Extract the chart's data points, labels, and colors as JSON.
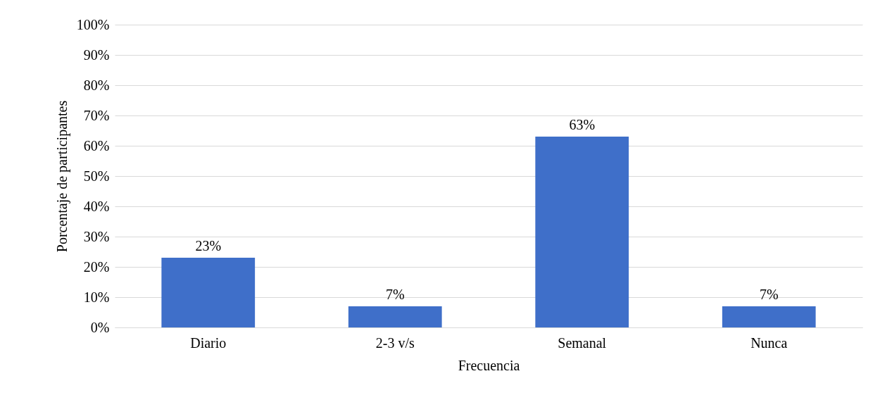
{
  "chart_data": {
    "type": "bar",
    "xlabel": "Frecuencia",
    "ylabel": "Porcentaje de participantes",
    "categories": [
      "Diario",
      "2-3 v/s",
      "Semanal",
      "Nunca"
    ],
    "values": [
      23,
      7,
      63,
      7
    ],
    "value_labels": [
      "23%",
      "7%",
      "63%",
      "7%"
    ],
    "color": "#3f6fc9",
    "ylim": [
      0,
      100
    ],
    "yticks": [
      {
        "value": 0,
        "label": "0%"
      },
      {
        "value": 10,
        "label": "10%"
      },
      {
        "value": 20,
        "label": "20%"
      },
      {
        "value": 30,
        "label": "30%"
      },
      {
        "value": 40,
        "label": "40%"
      },
      {
        "value": 50,
        "label": "50%"
      },
      {
        "value": 60,
        "label": "60%"
      },
      {
        "value": 70,
        "label": "70%"
      },
      {
        "value": 80,
        "label": "80%"
      },
      {
        "value": 90,
        "label": "90%"
      },
      {
        "value": 100,
        "label": "100%"
      }
    ],
    "grid": "y"
  }
}
